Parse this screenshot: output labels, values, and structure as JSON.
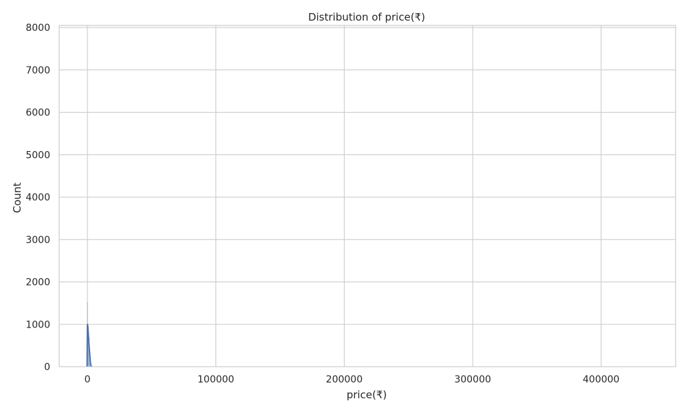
{
  "chart_data": {
    "type": "bar",
    "title": "Distribution of price(₹)",
    "xlabel": "price(₹)",
    "ylabel": "Count",
    "xlim": [
      -22000,
      458000
    ],
    "ylim": [
      0,
      8050
    ],
    "xticks": [
      0,
      100000,
      200000,
      300000,
      400000
    ],
    "yticks": [
      0,
      1000,
      2000,
      3000,
      4000,
      5000,
      6000,
      7000,
      8000
    ],
    "grid": true,
    "colors": {
      "bar": "#4c72b0",
      "line": "#4c72b0",
      "grid": "#cccccc",
      "background": "#ffffff"
    },
    "series": [
      {
        "kind": "histogram",
        "bins": [
          {
            "x0": -200,
            "x1": 150,
            "count": 1520
          },
          {
            "x0": 150,
            "x1": 450,
            "count": 1020
          },
          {
            "x0": 450,
            "x1": 900,
            "count": 930
          },
          {
            "x0": 900,
            "x1": 1500,
            "count": 700
          },
          {
            "x0": 1500,
            "x1": 2300,
            "count": 320
          },
          {
            "x0": 2300,
            "x1": 3000,
            "count": 40
          }
        ]
      },
      {
        "kind": "kde",
        "points": [
          [
            -300,
            0
          ],
          [
            0,
            1000
          ],
          [
            300,
            960
          ],
          [
            700,
            780
          ],
          [
            1200,
            540
          ],
          [
            1800,
            300
          ],
          [
            2400,
            80
          ],
          [
            2900,
            10
          ],
          [
            3500,
            0
          ]
        ]
      }
    ]
  }
}
